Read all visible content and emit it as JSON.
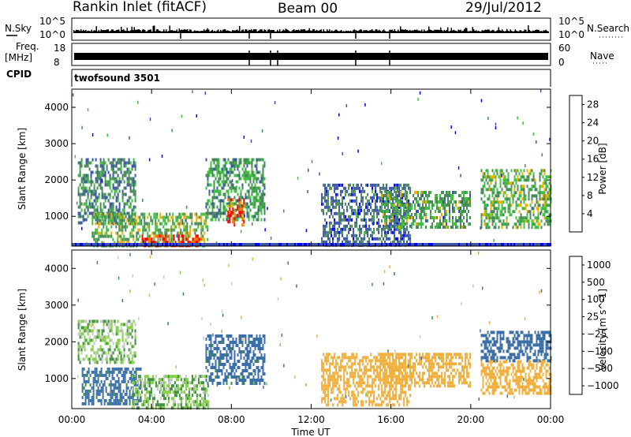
{
  "header": {
    "station": "Rankin Inlet (fitACF)",
    "beam": "Beam 00",
    "date": "29/Jul/2012"
  },
  "strips": {
    "nsky": {
      "label": "N.Sky",
      "left_ticks": [
        "10^5",
        "10^0"
      ]
    },
    "nsearch": {
      "label": "N.Search",
      "right_ticks": [
        "10^5",
        "10^0"
      ]
    },
    "freq": {
      "label_top": "Freq.",
      "label_unit": "[MHz]",
      "left_ticks": [
        "18",
        "8"
      ]
    },
    "nave": {
      "label": "Nave",
      "right_ticks": [
        "60",
        "0"
      ]
    },
    "cpid": {
      "label": "CPID",
      "value": "twofsound 3501"
    }
  },
  "chart_data": [
    {
      "type": "heatmap",
      "title": "",
      "xlabel": "Time UT",
      "ylabel": "Slant Range [km]",
      "x_ticks": [
        "00:00",
        "04:00",
        "08:00",
        "12:00",
        "16:00",
        "20:00",
        "00:00"
      ],
      "xlim_hours": [
        0,
        24
      ],
      "y_ticks": [
        1000,
        2000,
        3000,
        4000
      ],
      "ylim": [
        180,
        4500
      ],
      "colorbar": {
        "label": "Power [dB]",
        "ticks": [
          4,
          8,
          12,
          16,
          20,
          24,
          28
        ],
        "range": [
          0,
          30
        ],
        "colors": [
          "#0000ff",
          "#3b54a8",
          "#4a8a5a",
          "#40c040",
          "#f0b000",
          "#f07000",
          "#ff0000"
        ]
      },
      "echo_regions": [
        {
          "t_start": 0.3,
          "t_end": 3.2,
          "r_min": 800,
          "r_max": 2600,
          "value": 10
        },
        {
          "t_start": 1.0,
          "t_end": 6.8,
          "r_min": 180,
          "r_max": 1100,
          "value": 14
        },
        {
          "t_start": 3.5,
          "t_end": 6.5,
          "r_min": 180,
          "r_max": 500,
          "value": 26
        },
        {
          "t_start": 6.7,
          "t_end": 9.7,
          "r_min": 900,
          "r_max": 2600,
          "value": 12
        },
        {
          "t_start": 7.8,
          "t_end": 8.6,
          "r_min": 800,
          "r_max": 1500,
          "value": 25
        },
        {
          "t_start": 12.5,
          "t_end": 17.0,
          "r_min": 200,
          "r_max": 1900,
          "value": 8
        },
        {
          "t_start": 15.5,
          "t_end": 20.0,
          "r_min": 700,
          "r_max": 1700,
          "value": 13
        },
        {
          "t_start": 20.5,
          "t_end": 24.0,
          "r_min": 700,
          "r_max": 2300,
          "value": 14
        }
      ]
    },
    {
      "type": "heatmap",
      "title": "",
      "xlabel": "Time UT",
      "ylabel": "Slant Range [km]",
      "x_ticks": [
        "00:00",
        "04:00",
        "08:00",
        "12:00",
        "16:00",
        "20:00",
        "00:00"
      ],
      "xlim_hours": [
        0,
        24
      ],
      "y_ticks": [
        1000,
        2000,
        3000,
        4000
      ],
      "ylim": [
        180,
        4500
      ],
      "colorbar": {
        "label": "Velocity [m s^-1]",
        "ticks": [
          "1000",
          "500",
          "100",
          "25",
          "−25",
          "−100",
          "−500",
          "−1000"
        ],
        "colors": [
          "#2040c0",
          "#3b6fa8",
          "#3c9040",
          "#80d040",
          "#c8c8c8",
          "#f0b040",
          "#f07000",
          "#ff0000"
        ]
      },
      "echo_regions": [
        {
          "t_start": 0.3,
          "t_end": 3.2,
          "r_min": 1400,
          "r_max": 2600,
          "value": 0
        },
        {
          "t_start": 0.5,
          "t_end": 3.5,
          "r_min": 300,
          "r_max": 1300,
          "value": 150
        },
        {
          "t_start": 3.0,
          "t_end": 6.8,
          "r_min": 180,
          "r_max": 1100,
          "value": 10
        },
        {
          "t_start": 6.7,
          "t_end": 9.7,
          "r_min": 900,
          "r_max": 2200,
          "value": 150
        },
        {
          "t_start": 12.5,
          "t_end": 17.0,
          "r_min": 300,
          "r_max": 1700,
          "value": -300
        },
        {
          "t_start": 15.5,
          "t_end": 20.0,
          "r_min": 800,
          "r_max": 1700,
          "value": -300
        },
        {
          "t_start": 20.5,
          "t_end": 24.0,
          "r_min": 1500,
          "r_max": 2300,
          "value": 300
        },
        {
          "t_start": 20.5,
          "t_end": 24.0,
          "r_min": 600,
          "r_max": 1500,
          "value": -300
        }
      ]
    }
  ]
}
